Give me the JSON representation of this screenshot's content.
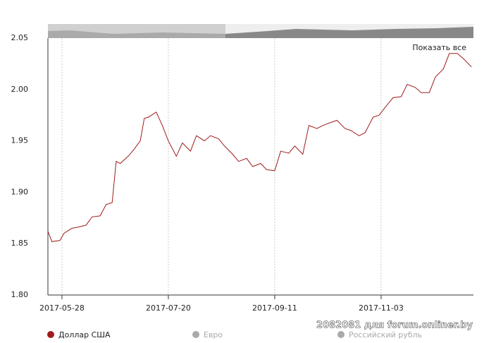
{
  "chart_data": {
    "type": "line",
    "reset_label": "Показать все",
    "watermark": "2082081 для forum.onliner.by",
    "x": [
      "2017-05-21",
      "2017-05-23",
      "2017-05-27",
      "2017-05-29",
      "2017-06-02",
      "2017-06-05",
      "2017-06-09",
      "2017-06-12",
      "2017-06-16",
      "2017-06-19",
      "2017-06-22",
      "2017-06-24",
      "2017-06-26",
      "2017-06-30",
      "2017-07-03",
      "2017-07-06",
      "2017-07-08",
      "2017-07-10",
      "2017-07-14",
      "2017-07-17",
      "2017-07-20",
      "2017-07-24",
      "2017-07-27",
      "2017-07-31",
      "2017-08-03",
      "2017-08-07",
      "2017-08-10",
      "2017-08-14",
      "2017-08-17",
      "2017-08-21",
      "2017-08-24",
      "2017-08-28",
      "2017-08-31",
      "2017-09-04",
      "2017-09-07",
      "2017-09-11",
      "2017-09-14",
      "2017-09-18",
      "2017-09-21",
      "2017-09-25",
      "2017-09-28",
      "2017-10-02",
      "2017-10-05",
      "2017-10-09",
      "2017-10-12",
      "2017-10-16",
      "2017-10-19",
      "2017-10-23",
      "2017-10-26",
      "2017-10-30",
      "2017-11-02",
      "2017-11-06",
      "2017-11-09",
      "2017-11-13",
      "2017-11-16",
      "2017-11-20",
      "2017-11-23",
      "2017-11-27",
      "2017-11-30",
      "2017-12-04",
      "2017-12-07",
      "2017-12-11",
      "2017-12-14",
      "2017-12-18"
    ],
    "series": [
      {
        "name": "Доллар США",
        "color": "#a01c1c",
        "values": [
          1.862,
          1.852,
          1.853,
          1.86,
          1.865,
          1.866,
          1.868,
          1.876,
          1.877,
          1.888,
          1.89,
          1.93,
          1.928,
          1.935,
          1.942,
          1.95,
          1.972,
          1.973,
          1.978,
          1.965,
          1.95,
          1.935,
          1.948,
          1.94,
          1.955,
          1.95,
          1.955,
          1.952,
          1.945,
          1.937,
          1.93,
          1.933,
          1.925,
          1.928,
          1.922,
          1.921,
          1.94,
          1.938,
          1.945,
          1.937,
          1.965,
          1.962,
          1.965,
          1.968,
          1.97,
          1.962,
          1.96,
          1.955,
          1.958,
          1.973,
          1.975,
          1.985,
          1.992,
          1.993,
          2.005,
          2.002,
          1.997,
          1.997,
          2.012,
          2.02,
          2.035,
          2.035,
          2.03,
          2.022
        ]
      }
    ],
    "hidden_series": [
      {
        "name": "Евро",
        "color": "#aaaaaa"
      },
      {
        "name": "Российский рубль",
        "color": "#aaaaaa"
      }
    ],
    "xlim": [
      "2017-05-21",
      "2017-12-19"
    ],
    "xticks": [
      "2017-05-28",
      "2017-07-20",
      "2017-09-11",
      "2017-11-03"
    ],
    "ylim": [
      1.8,
      2.05
    ],
    "yticks": [
      {
        "value": 1.8,
        "label": "1.80"
      },
      1.85,
      {
        "value": 1.9,
        "label": "1.90"
      },
      1.95,
      {
        "value": 2,
        "label": "2.00"
      },
      2.05
    ],
    "grid": true
  }
}
